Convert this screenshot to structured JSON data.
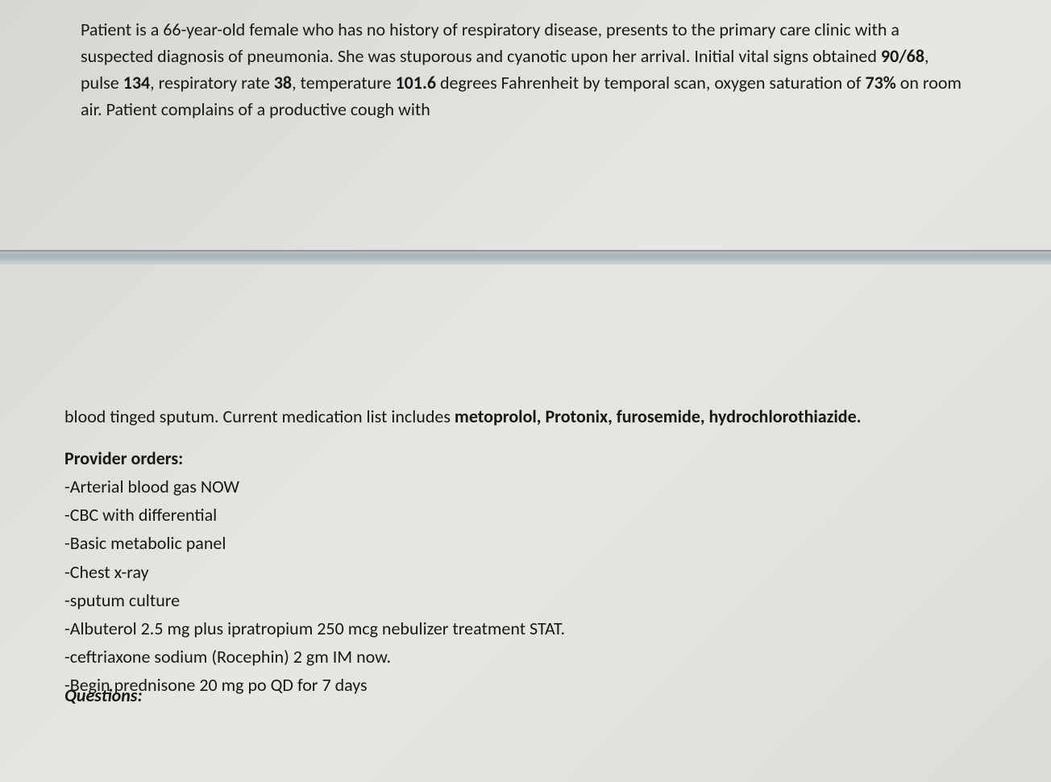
{
  "document": {
    "paragraph1": {
      "seg1": "Patient is a 66-year-old female who has no history of respiratory disease, presents to the primary care clinic with a suspected diagnosis of pneumonia. She was stuporous and cyanotic upon her arrival. Initial vital signs obtained ",
      "bold1": "90/68",
      "seg2": ", pulse ",
      "bold2": "134",
      "seg3": ", respiratory rate ",
      "bold3": "38",
      "seg4": ", temperature ",
      "bold4": "101.6",
      "seg5": " degrees Fahrenheit by temporal scan, oxygen saturation of ",
      "bold5": "73%",
      "seg6": " on room air. Patient complains of a productive cough with"
    },
    "paragraph2": {
      "seg1": "blood tinged sputum. Current medication list includes ",
      "bold1": "metoprolol, Protonix, furosemide, hydrochlorothiazide."
    },
    "orders_header": "Provider orders:",
    "orders": [
      "-Arterial blood gas NOW",
      "-CBC with differential",
      "-Basic metabolic panel",
      "-Chest x-ray",
      "-sputum culture",
      "-Albuterol 2.5 mg plus ipratropium 250 mcg nebulizer treatment STAT.",
      "-ceftriaxone sodium (Rocephin) 2 gm IM now.",
      "-Begin prednisone 20 mg po QD for 7 days"
    ],
    "cutoff": "Questions:"
  },
  "style": {
    "body_fontsize": 22,
    "body_color": "#1a1a1a",
    "background_gradient_start": "#d8d6d0",
    "background_gradient_end": "#dedcd6",
    "divider_color": "#a8b0b8",
    "font_family": "Calibri"
  }
}
